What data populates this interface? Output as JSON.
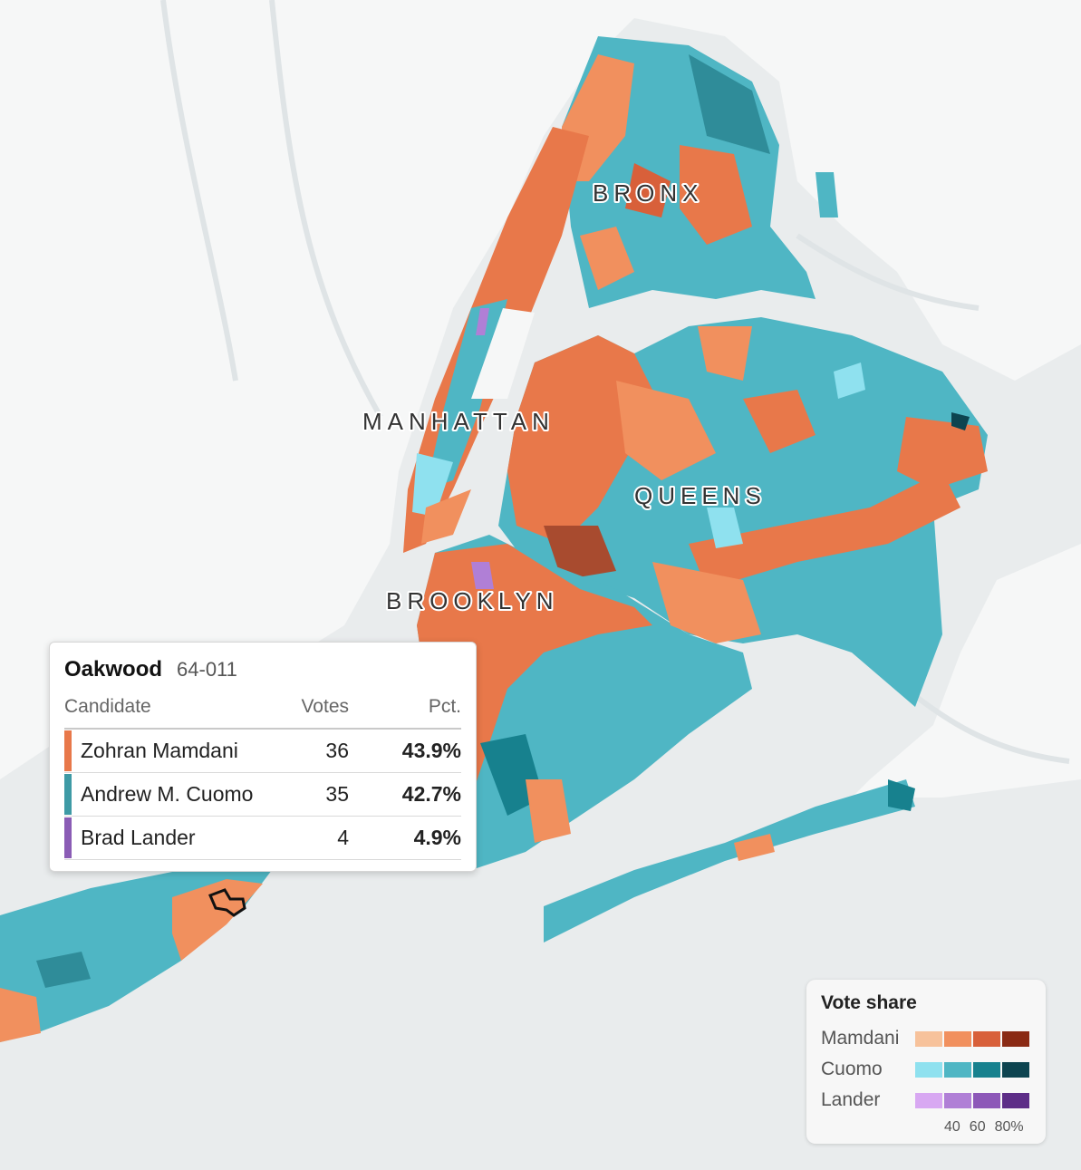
{
  "map": {
    "borough_labels": [
      "BRONX",
      "MANHATTAN",
      "QUEENS",
      "BROOKLYN"
    ]
  },
  "tooltip": {
    "precinct_name": "Oakwood",
    "precinct_code": "64-011",
    "columns": {
      "candidate": "Candidate",
      "votes": "Votes",
      "pct": "Pct."
    },
    "rows": [
      {
        "candidate": "Zohran Mamdani",
        "votes": "36",
        "pct": "43.9%",
        "color": "#e8784a"
      },
      {
        "candidate": "Andrew M. Cuomo",
        "votes": "35",
        "pct": "42.7%",
        "color": "#3e9aa5"
      },
      {
        "candidate": "Brad Lander",
        "votes": "4",
        "pct": "4.9%",
        "color": "#8a5cb5"
      }
    ]
  },
  "legend": {
    "title": "Vote share",
    "rows": [
      {
        "label": "Mamdani",
        "colors": [
          "#f7c29b",
          "#f1905e",
          "#d8603a",
          "#8a2a14"
        ]
      },
      {
        "label": "Cuomo",
        "colors": [
          "#8fe1ef",
          "#4fb6c4",
          "#17818e",
          "#0d4450"
        ]
      },
      {
        "label": "Lander",
        "colors": [
          "#d8a8f2",
          "#b07fd6",
          "#8d58b8",
          "#5d2d87"
        ]
      }
    ],
    "ticks": [
      "40",
      "60",
      "80%"
    ]
  }
}
